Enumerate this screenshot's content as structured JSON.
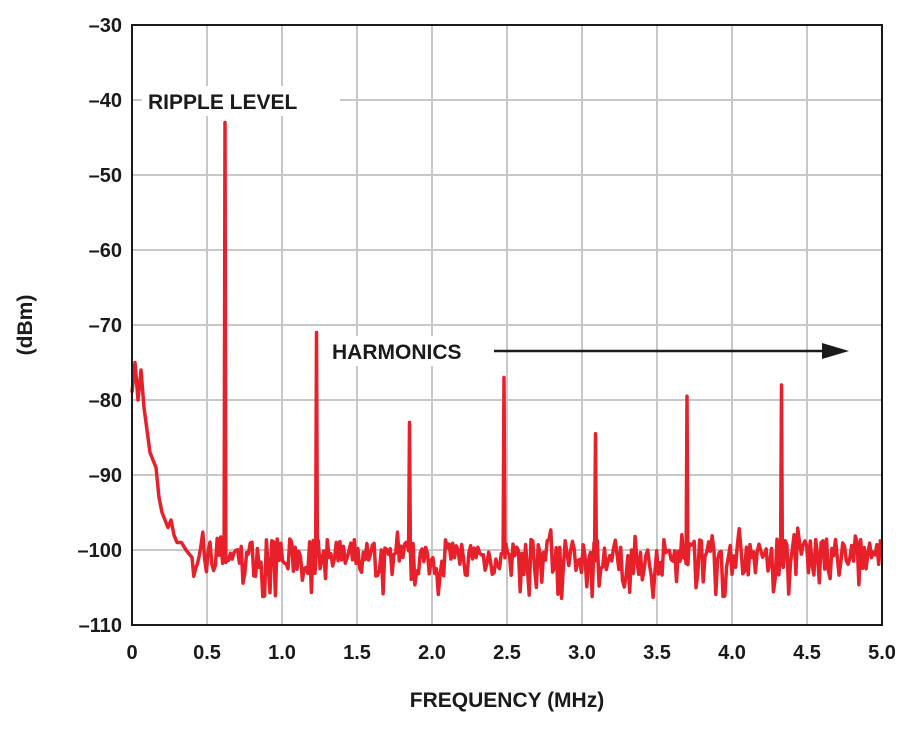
{
  "chart_data": {
    "type": "line",
    "title": "",
    "xlabel": "FREQUENCY (MHz)",
    "ylabel": "(dBm)",
    "xlim": [
      0,
      5.0
    ],
    "ylim": [
      -110,
      -30
    ],
    "x_ticks": [
      0,
      0.5,
      1.0,
      1.5,
      2.0,
      2.5,
      3.0,
      3.5,
      4.0,
      4.5,
      5.0
    ],
    "x_tick_labels": [
      "0",
      "0.5",
      "1.0",
      "1.5",
      "2.0",
      "2.5",
      "3.0",
      "3.5",
      "4.0",
      "4.5",
      "5.0"
    ],
    "y_ticks": [
      -30,
      -40,
      -50,
      -60,
      -70,
      -80,
      -90,
      -100,
      -110
    ],
    "y_tick_labels": [
      "–30",
      "–40",
      "–50",
      "–60",
      "–70",
      "–80",
      "–90",
      "–100",
      "–110"
    ],
    "grid": true,
    "line_color": "#e8202a",
    "noise_floor_dbm": -101,
    "series": [
      {
        "x": [
          0.0,
          0.02,
          0.04,
          0.06,
          0.08,
          0.1,
          0.12,
          0.14,
          0.16,
          0.18,
          0.2,
          0.22,
          0.24,
          0.26,
          0.28,
          0.3,
          0.33,
          0.36,
          0.4
        ],
        "values": [
          -79,
          -75,
          -80,
          -76,
          -81,
          -84,
          -87,
          -88,
          -89,
          -93,
          -95,
          -96,
          -97,
          -96,
          -98,
          -99,
          -99,
          -100,
          -101
        ]
      }
    ],
    "peaks": [
      {
        "x": 0.62,
        "y": -43
      },
      {
        "x": 1.23,
        "y": -71
      },
      {
        "x": 1.85,
        "y": -83
      },
      {
        "x": 2.48,
        "y": -77
      },
      {
        "x": 3.09,
        "y": -84.5
      },
      {
        "x": 3.7,
        "y": -79.5
      },
      {
        "x": 4.33,
        "y": -78
      }
    ],
    "annotations": [
      {
        "text": "RIPPLE LEVEL"
      },
      {
        "text": "HARMONICS"
      }
    ]
  }
}
